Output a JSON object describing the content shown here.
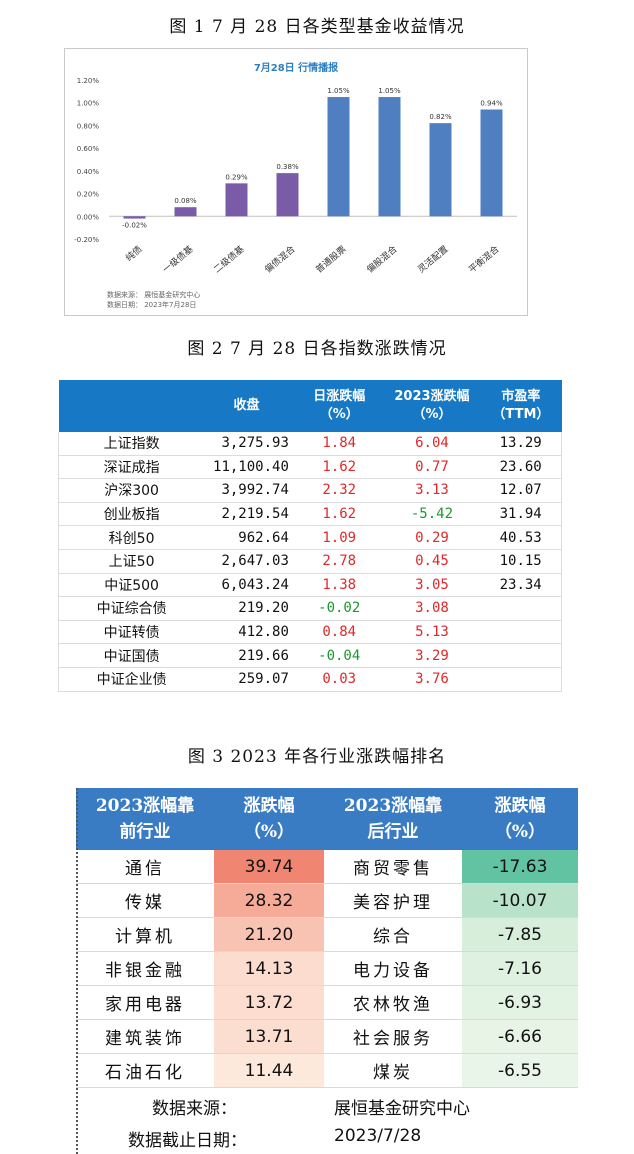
{
  "figure1": {
    "caption": "图 1   7 月 28 日各类型基金收益情况",
    "source_line1": "数据来源：  展恒基金研究中心",
    "source_line2": "数据日期：  2023年7月28日",
    "chart_data": {
      "type": "bar",
      "title": "7月28日   行情播报",
      "categories": [
        "纯债",
        "一级债基",
        "二级债基",
        "偏债混合",
        "普通股票",
        "偏股混合",
        "灵活配置",
        "平衡混合"
      ],
      "values": [
        -0.02,
        0.08,
        0.29,
        0.38,
        1.05,
        1.05,
        0.82,
        0.94
      ],
      "data_labels": [
        "-0.02%",
        "0.08%",
        "0.29%",
        "0.38%",
        "1.05%",
        "1.05%",
        "0.82%",
        "0.94%"
      ],
      "colors": [
        "#7a5ba8",
        "#7a5ba8",
        "#7a5ba8",
        "#7a5ba8",
        "#4f7fc0",
        "#4f7fc0",
        "#4f7fc0",
        "#4f7fc0"
      ],
      "ylim": [
        -0.2,
        1.2
      ],
      "yticks": [
        "-0.20%",
        "0.00%",
        "0.20%",
        "0.40%",
        "0.60%",
        "0.80%",
        "1.00%",
        "1.20%"
      ],
      "ytick_values": [
        -0.2,
        0,
        0.2,
        0.4,
        0.6,
        0.8,
        1.0,
        1.2
      ],
      "grid": false
    }
  },
  "figure2": {
    "caption": "图 2   7 月 28 日各指数涨跌情况",
    "headers": [
      "",
      "收盘",
      "日涨跌幅\n（%）",
      "2023涨跌幅\n（%）",
      "市盈率\n（TTM）"
    ],
    "rows": [
      {
        "name": "上证指数",
        "close": "3,275.93",
        "daily": "1.84",
        "ytd": "6.04",
        "pe": "13.29"
      },
      {
        "name": "深证成指",
        "close": "11,100.40",
        "daily": "1.62",
        "ytd": "0.77",
        "pe": "23.60"
      },
      {
        "name": "沪深300",
        "close": "3,992.74",
        "daily": "2.32",
        "ytd": "3.13",
        "pe": "12.07"
      },
      {
        "name": "创业板指",
        "close": "2,219.54",
        "daily": "1.62",
        "ytd": "-5.42",
        "pe": "31.94"
      },
      {
        "name": "科创50",
        "close": "962.64",
        "daily": "1.09",
        "ytd": "0.29",
        "pe": "40.53"
      },
      {
        "name": "上证50",
        "close": "2,647.03",
        "daily": "2.78",
        "ytd": "0.45",
        "pe": "10.15"
      },
      {
        "name": "中证500",
        "close": "6,043.24",
        "daily": "1.38",
        "ytd": "3.05",
        "pe": "23.34"
      },
      {
        "name": "中证综合债",
        "close": "219.20",
        "daily": "-0.02",
        "ytd": "3.08",
        "pe": ""
      },
      {
        "name": "中证转债",
        "close": "412.80",
        "daily": "0.84",
        "ytd": "5.13",
        "pe": ""
      },
      {
        "name": "中证国债",
        "close": "219.66",
        "daily": "-0.04",
        "ytd": "3.29",
        "pe": ""
      },
      {
        "name": "中证企业债",
        "close": "259.07",
        "daily": "0.03",
        "ytd": "3.76",
        "pe": ""
      }
    ],
    "colors": {
      "header_bg": "#1779c6",
      "up": "#e0282a",
      "down": "#1a9a2c"
    }
  },
  "figure3": {
    "caption": "图 3   2023 年各行业涨跌幅排名",
    "headers": [
      "2023涨幅靠\n前行业",
      "涨跌幅\n（%）",
      "2023涨幅靠\n后行业",
      "涨跌幅\n（%）"
    ],
    "rows": [
      {
        "top_name": "通信",
        "top_val": "39.74",
        "bottom_name": "商贸零售",
        "bottom_val": "-17.63",
        "top_bg": "#f08572",
        "bottom_bg": "#62c3a3"
      },
      {
        "top_name": "传媒",
        "top_val": "28.32",
        "bottom_name": "美容护理",
        "bottom_val": "-10.07",
        "top_bg": "#f6aa98",
        "bottom_bg": "#b9e2cb"
      },
      {
        "top_name": "计算机",
        "top_val": "21.20",
        "bottom_name": "综合",
        "bottom_val": "-7.85",
        "top_bg": "#f9c3b4",
        "bottom_bg": "#d7eedb"
      },
      {
        "top_name": "非银金融",
        "top_val": "14.13",
        "bottom_name": "电力设备",
        "bottom_val": "-7.16",
        "top_bg": "#fcdccf",
        "bottom_bg": "#dff1e1"
      },
      {
        "top_name": "家用电器",
        "top_val": "13.72",
        "bottom_name": "农林牧渔",
        "bottom_val": "-6.93",
        "top_bg": "#fcddd0",
        "bottom_bg": "#e2f2e3"
      },
      {
        "top_name": "建筑装饰",
        "top_val": "13.71",
        "bottom_name": "社会服务",
        "bottom_val": "-6.66",
        "top_bg": "#fcded1",
        "bottom_bg": "#e7f4e6"
      },
      {
        "top_name": "石油石化",
        "top_val": "11.44",
        "bottom_name": "煤炭",
        "bottom_val": "-6.55",
        "top_bg": "#fde8dc",
        "bottom_bg": "#e9f5e8"
      }
    ],
    "source_label": "数据来源：",
    "source_value": "展恒基金研究中心",
    "date_label": "数据截止日期：",
    "date_value": "2023/7/28",
    "colors": {
      "header_bg": "#3a7cc4"
    }
  }
}
